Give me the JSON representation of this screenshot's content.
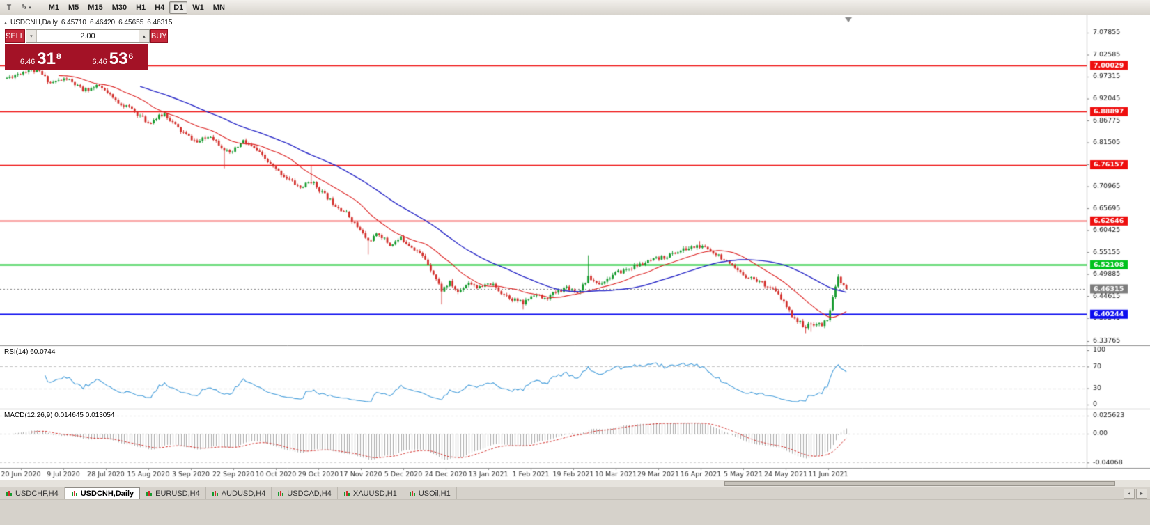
{
  "icons": {
    "window_glyph": "T",
    "pencil_glyph": "✎",
    "dropdown_glyph": "▾",
    "collapse_glyph": "▴",
    "vol_down_glyph": "▾",
    "vol_up_glyph": "▴",
    "scroll_left_glyph": "◂",
    "scroll_right_glyph": "▸"
  },
  "toolbar": {
    "timeframes": [
      {
        "label": "M1",
        "active": false
      },
      {
        "label": "M5",
        "active": false
      },
      {
        "label": "M15",
        "active": false
      },
      {
        "label": "M30",
        "active": false
      },
      {
        "label": "H1",
        "active": false
      },
      {
        "label": "H4",
        "active": false
      },
      {
        "label": "D1",
        "active": true
      },
      {
        "label": "W1",
        "active": false
      },
      {
        "label": "MN",
        "active": false
      }
    ]
  },
  "chart_header": {
    "symbol": "USDCNH,Daily",
    "open": "6.45710",
    "high": "6.46420",
    "low": "6.45655",
    "close": "6.46315"
  },
  "trade_panel": {
    "sell_label": "SELL",
    "buy_label": "BUY",
    "volume": "2.00",
    "bid": {
      "big": "6.46",
      "pips": "31",
      "pipette": "8"
    },
    "ask": {
      "big": "6.46",
      "pips": "53",
      "pipette": "6"
    }
  },
  "tabbar": {
    "tabs": [
      {
        "label": "USDCHF,H4",
        "active": false
      },
      {
        "label": "USDCNH,Daily",
        "active": true
      },
      {
        "label": "EURUSD,H4",
        "active": false
      },
      {
        "label": "AUDUSD,H4",
        "active": false
      },
      {
        "label": "USDCAD,H4",
        "active": false
      },
      {
        "label": "XAUUSD,H1",
        "active": false
      },
      {
        "label": "USOil,H1",
        "active": false
      }
    ]
  },
  "chart_data": {
    "type": "candlestick",
    "symbol": "USDCNH",
    "timeframe": "Daily",
    "colors": {
      "bull": "#169b2f",
      "bear": "#d3302c",
      "ma_fast": "#dd2222",
      "ma_slow": "#2a2ac8"
    },
    "price_axis": {
      "ticks": [
        "7.07855",
        "7.02585",
        "6.97315",
        "6.92045",
        "6.86775",
        "6.81505",
        "6.76235",
        "6.70965",
        "6.65695",
        "6.60425",
        "6.55155",
        "6.49885",
        "6.44615",
        "6.39345",
        "6.33765"
      ]
    },
    "x_axis_labels": [
      "20 Jun 2020",
      "9 Jul 2020",
      "28 Jul 2020",
      "15 Aug 2020",
      "3 Sep 2020",
      "22 Sep 2020",
      "10 Oct 2020",
      "29 Oct 2020",
      "17 Nov 2020",
      "5 Dec 2020",
      "24 Dec 2020",
      "13 Jan 2021",
      "1 Feb 2021",
      "19 Feb 2021",
      "10 Mar 2021",
      "29 Mar 2021",
      "16 Apr 2021",
      "5 May 2021",
      "24 May 2021",
      "11 Jun 2021"
    ],
    "horizontal_lines": [
      {
        "price": 7.00029,
        "label": "7.00029",
        "color": "#ee0e0e",
        "width": 1.6
      },
      {
        "price": 6.88897,
        "label": "6.88897",
        "color": "#ee0e0e",
        "width": 1.6
      },
      {
        "price": 6.76157,
        "label": "6.76157",
        "color": "#ee0e0e",
        "width": 1.6
      },
      {
        "price": 6.62646,
        "label": "6.62646",
        "color": "#ee0e0e",
        "width": 1.6
      },
      {
        "price": 6.52108,
        "label": "6.52108",
        "color": "#00c21d",
        "width": 2
      },
      {
        "price": 6.40244,
        "label": "6.40244",
        "color": "#0d0df0",
        "width": 2
      }
    ],
    "current_price": {
      "value": 6.46315,
      "label": "6.46315",
      "color": "#7d7d7d"
    },
    "candles": {
      "count": 310,
      "seed": 11,
      "noise_amp": 0.0052,
      "path_waypoints": [
        [
          0,
          6.97
        ],
        [
          8,
          6.99
        ],
        [
          12,
          6.984
        ],
        [
          16,
          6.958
        ],
        [
          22,
          6.968
        ],
        [
          28,
          6.94
        ],
        [
          34,
          6.95
        ],
        [
          40,
          6.915
        ],
        [
          46,
          6.895
        ],
        [
          52,
          6.862
        ],
        [
          58,
          6.884
        ],
        [
          64,
          6.842
        ],
        [
          70,
          6.815
        ],
        [
          75,
          6.832
        ],
        [
          82,
          6.786
        ],
        [
          87,
          6.818
        ],
        [
          92,
          6.795
        ],
        [
          98,
          6.755
        ],
        [
          103,
          6.73
        ],
        [
          108,
          6.706
        ],
        [
          112,
          6.722
        ],
        [
          116,
          6.695
        ],
        [
          120,
          6.67
        ],
        [
          125,
          6.645
        ],
        [
          129,
          6.612
        ],
        [
          133,
          6.578
        ],
        [
          137,
          6.596
        ],
        [
          141,
          6.568
        ],
        [
          145,
          6.585
        ],
        [
          150,
          6.56
        ],
        [
          154,
          6.535
        ],
        [
          157,
          6.5
        ],
        [
          160,
          6.46
        ],
        [
          163,
          6.478
        ],
        [
          166,
          6.455
        ],
        [
          170,
          6.48
        ],
        [
          174,
          6.465
        ],
        [
          178,
          6.476
        ],
        [
          182,
          6.455
        ],
        [
          186,
          6.44
        ],
        [
          190,
          6.428
        ],
        [
          194,
          6.452
        ],
        [
          198,
          6.438
        ],
        [
          202,
          6.455
        ],
        [
          206,
          6.468
        ],
        [
          210,
          6.455
        ],
        [
          214,
          6.49
        ],
        [
          218,
          6.475
        ],
        [
          224,
          6.5
        ],
        [
          230,
          6.515
        ],
        [
          236,
          6.528
        ],
        [
          242,
          6.54
        ],
        [
          248,
          6.555
        ],
        [
          254,
          6.566
        ],
        [
          258,
          6.558
        ],
        [
          262,
          6.545
        ],
        [
          266,
          6.52
        ],
        [
          270,
          6.5
        ],
        [
          274,
          6.49
        ],
        [
          278,
          6.478
        ],
        [
          282,
          6.462
        ],
        [
          285,
          6.44
        ],
        [
          288,
          6.408
        ],
        [
          291,
          6.386
        ],
        [
          294,
          6.372
        ],
        [
          297,
          6.38
        ],
        [
          300,
          6.376
        ],
        [
          302,
          6.392
        ],
        [
          304,
          6.44
        ],
        [
          306,
          6.49
        ],
        [
          307,
          6.476
        ],
        [
          309,
          6.4632
        ]
      ],
      "spikes": [
        {
          "i": 80,
          "low": 6.753
        },
        {
          "i": 112,
          "high": 6.759
        },
        {
          "i": 133,
          "low": 6.546
        },
        {
          "i": 160,
          "low": 6.426
        },
        {
          "i": 190,
          "low": 6.414
        },
        {
          "i": 214,
          "high": 6.544
        },
        {
          "i": 255,
          "high": 6.578
        },
        {
          "i": 294,
          "low": 6.357
        },
        {
          "i": 296,
          "low": 6.36
        },
        {
          "i": 306,
          "high": 6.498
        }
      ]
    },
    "moving_averages": [
      {
        "period": 20,
        "color": "#dd2222"
      },
      {
        "period": 50,
        "color": "#2a2ac8"
      }
    ],
    "indicators": {
      "rsi": {
        "label": "RSI(14) 60.0744",
        "value": 60.0744,
        "period": 14,
        "levels": [
          70,
          30
        ],
        "axis_labels": [
          "100",
          "70",
          "30",
          "0"
        ],
        "color": "#4aa0dc"
      },
      "macd": {
        "label": "MACD(12,26,9) 0.014645 0.013054",
        "macd_value": 0.014645,
        "signal_value": 0.013054,
        "axis_labels": [
          "0.025623",
          "0.00",
          "-0.04068"
        ],
        "axis_values": [
          0.025623,
          0,
          -0.04068
        ],
        "histogram_color": "#ababab",
        "signal_color": "#d3302c"
      }
    }
  }
}
